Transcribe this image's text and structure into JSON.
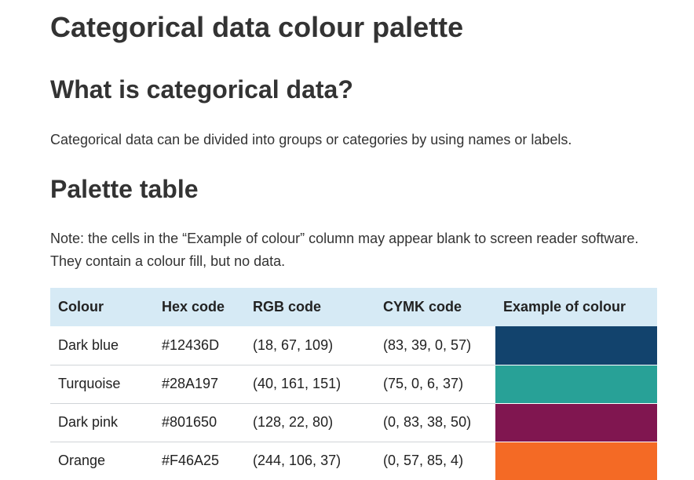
{
  "page": {
    "title": "Categorical data colour palette",
    "section1": {
      "heading": "What is categorical data?",
      "text": "Categorical data can be divided into groups or categories by using names or labels."
    },
    "section2": {
      "heading": "Palette table",
      "note": "Note: the cells in the “Example of colour” column may appear blank to screen reader software. They contain a colour fill, but no data."
    }
  },
  "table": {
    "headers": [
      "Colour",
      "Hex code",
      "RGB code",
      "CYMK code",
      "Example of colour"
    ],
    "rows": [
      {
        "colour": "Dark blue",
        "hex": "#12436D",
        "rgb": "(18, 67, 109)",
        "cymk": "(83, 39, 0, 57)",
        "swatch": "#12436D"
      },
      {
        "colour": "Turquoise",
        "hex": "#28A197",
        "rgb": "(40, 161, 151)",
        "cymk": "(75, 0, 6, 37)",
        "swatch": "#28A197"
      },
      {
        "colour": "Dark pink",
        "hex": "#801650",
        "rgb": "(128, 22, 80)",
        "cymk": "(0, 83, 38, 50)",
        "swatch": "#801650"
      },
      {
        "colour": "Orange",
        "hex": "#F46A25",
        "rgb": "(244, 106, 37)",
        "cymk": "(0, 57, 85, 4)",
        "swatch": "#F46A25"
      }
    ]
  },
  "colors": {
    "header_background": "#d6eaf5",
    "text": "#333333"
  }
}
